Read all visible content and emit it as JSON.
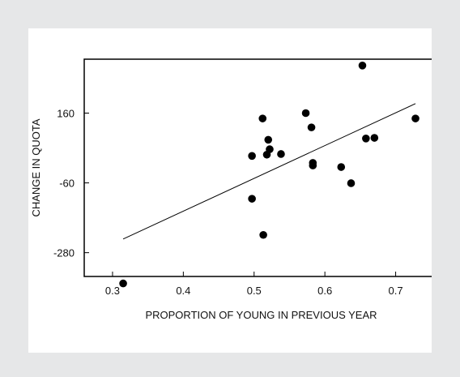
{
  "chart_data": {
    "type": "scatter",
    "title": "",
    "xlabel": "PROPORTION OF YOUNG IN PREVIOUS YEAR",
    "ylabel": "CHANGE IN QUOTA",
    "xlim": [
      0.26,
      0.76
    ],
    "ylim": [
      -355,
      330
    ],
    "x_ticks": [
      0.3,
      0.4,
      0.5,
      0.6,
      0.7
    ],
    "y_ticks": [
      -280,
      -60,
      160
    ],
    "x_tick_labels": [
      "0.3",
      "0.4",
      "0.5",
      "0.6",
      "0.7"
    ],
    "y_tick_labels": [
      "-280",
      "-60",
      "160"
    ],
    "grid": false,
    "series": [
      {
        "points": [
          {
            "x": 0.315,
            "y": -377
          },
          {
            "x": 0.497,
            "y": 25
          },
          {
            "x": 0.497,
            "y": -110
          },
          {
            "x": 0.512,
            "y": 143
          },
          {
            "x": 0.513,
            "y": -224
          },
          {
            "x": 0.518,
            "y": 29
          },
          {
            "x": 0.52,
            "y": 76
          },
          {
            "x": 0.522,
            "y": 46
          },
          {
            "x": 0.538,
            "y": 31
          },
          {
            "x": 0.573,
            "y": 160
          },
          {
            "x": 0.581,
            "y": 115
          },
          {
            "x": 0.583,
            "y": -5
          },
          {
            "x": 0.583,
            "y": 3
          },
          {
            "x": 0.623,
            "y": -10
          },
          {
            "x": 0.637,
            "y": -61
          },
          {
            "x": 0.653,
            "y": 310
          },
          {
            "x": 0.658,
            "y": 80
          },
          {
            "x": 0.67,
            "y": 82
          },
          {
            "x": 0.728,
            "y": 143
          }
        ]
      }
    ],
    "trend_line": {
      "x": [
        0.315,
        0.728
      ],
      "y": [
        -237,
        190
      ]
    }
  }
}
